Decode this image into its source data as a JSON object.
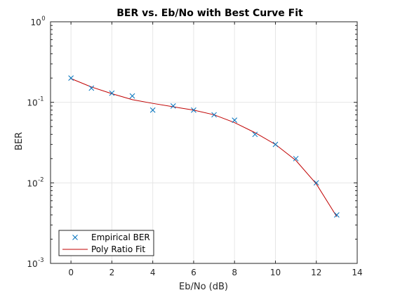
{
  "chart_data": {
    "type": "scatter",
    "title": "BER vs. Eb/No with Best Curve Fit",
    "xlabel": "Eb/No (dB)",
    "ylabel": "BER",
    "xlim": [
      -1,
      14
    ],
    "ylim": [
      0.001,
      1
    ],
    "yscale": "log",
    "grid": true,
    "legend_position": "bottom-left",
    "x_ticks": [
      "0",
      "2",
      "4",
      "6",
      "8",
      "10",
      "12",
      "14"
    ],
    "x_tick_values": [
      0,
      2,
      4,
      6,
      8,
      10,
      12,
      14
    ],
    "y_ticks": [
      {
        "value": 1,
        "base": "10",
        "exp": "0"
      },
      {
        "value": 0.1,
        "base": "10",
        "exp": "-1"
      },
      {
        "value": 0.01,
        "base": "10",
        "exp": "-2"
      },
      {
        "value": 0.001,
        "base": "10",
        "exp": "-3"
      }
    ],
    "series": [
      {
        "name": "Empirical BER",
        "style": "markers",
        "marker": "x",
        "color": "#0072BD",
        "x": [
          0,
          1,
          2,
          3,
          4,
          5,
          6,
          7,
          8,
          9,
          10,
          11,
          12,
          13
        ],
        "y": [
          0.2,
          0.15,
          0.13,
          0.12,
          0.08,
          0.09,
          0.08,
          0.07,
          0.06,
          0.04,
          0.03,
          0.02,
          0.01,
          0.004
        ]
      },
      {
        "name": "Poly Ratio Fit",
        "style": "line",
        "color": "#C00000",
        "x": [
          0,
          1,
          2,
          3,
          4,
          5,
          6,
          7,
          8,
          9,
          10,
          11,
          12,
          13
        ],
        "y": [
          0.197,
          0.155,
          0.128,
          0.108,
          0.097,
          0.088,
          0.08,
          0.07,
          0.056,
          0.042,
          0.03,
          0.019,
          0.0097,
          0.0038
        ]
      }
    ]
  }
}
